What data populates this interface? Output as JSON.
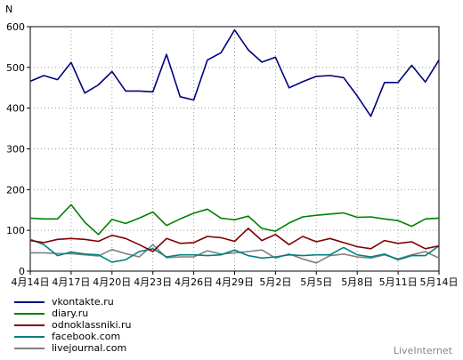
{
  "chart_data": {
    "type": "line",
    "title": "",
    "ylabel": "N",
    "xlabel": "",
    "ylim": [
      0,
      600
    ],
    "yticks": [
      0,
      100,
      200,
      300,
      400,
      500,
      600
    ],
    "grid": true,
    "legend_position": "bottom-left",
    "x_tick_labels": [
      "4月14日",
      "4月17日",
      "4月20日",
      "4月23日",
      "4月26日",
      "4月29日",
      "5月2日",
      "5月5日",
      "5月8日",
      "5月11日",
      "5月14日"
    ],
    "x_tick_index": [
      0,
      3,
      6,
      9,
      12,
      15,
      18,
      21,
      24,
      27,
      30
    ],
    "series": [
      {
        "name": "vkontakte.ru",
        "color": "#000080",
        "values": [
          466,
          480,
          470,
          512,
          437,
          457,
          490,
          442,
          442,
          440,
          532,
          428,
          420,
          518,
          536,
          592,
          543,
          513,
          525,
          450,
          465,
          478,
          480,
          475,
          430,
          380,
          463,
          463,
          505,
          464,
          518
        ]
      },
      {
        "name": "diary.ru",
        "color": "#008000",
        "values": [
          130,
          128,
          128,
          163,
          120,
          90,
          127,
          117,
          130,
          145,
          112,
          128,
          142,
          152,
          130,
          126,
          135,
          105,
          98,
          118,
          133,
          137,
          140,
          143,
          132,
          133,
          128,
          124,
          110,
          128,
          130
        ]
      },
      {
        "name": "odnoklassniki.ru",
        "color": "#800000",
        "values": [
          75,
          70,
          78,
          80,
          78,
          73,
          88,
          80,
          65,
          48,
          80,
          68,
          70,
          85,
          82,
          73,
          105,
          75,
          90,
          65,
          85,
          72,
          80,
          70,
          60,
          55,
          75,
          68,
          72,
          55,
          62
        ]
      },
      {
        "name": "facebook.com",
        "color": "#008080",
        "values": [
          78,
          65,
          38,
          47,
          42,
          40,
          22,
          28,
          48,
          55,
          35,
          40,
          40,
          38,
          40,
          52,
          38,
          32,
          35,
          40,
          38,
          40,
          40,
          58,
          40,
          35,
          42,
          28,
          38,
          38,
          62
        ]
      },
      {
        "name": "livejournal.com",
        "color": "#808080",
        "values": [
          45,
          45,
          43,
          43,
          40,
          37,
          53,
          43,
          35,
          65,
          33,
          35,
          35,
          50,
          42,
          45,
          48,
          52,
          32,
          42,
          30,
          20,
          38,
          42,
          35,
          32,
          40,
          30,
          40,
          48,
          32
        ]
      }
    ]
  },
  "watermark": "LiveInternet"
}
